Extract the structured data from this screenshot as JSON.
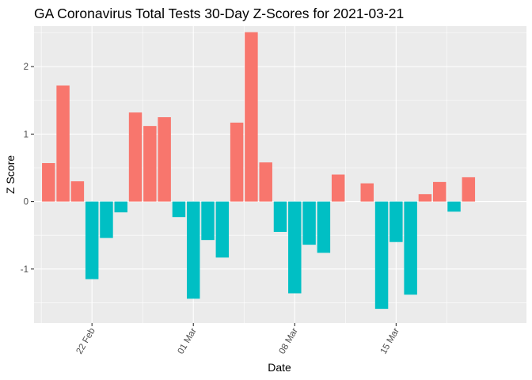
{
  "chart_data": {
    "type": "bar",
    "title": "GA Coronavirus Total Tests 30-Day Z-Scores for 2021-03-21",
    "xlabel": "Date",
    "ylabel": "Z Score",
    "ylim": [
      -1.8,
      2.6
    ],
    "yticks": [
      -1,
      0,
      1,
      2
    ],
    "xticks": [
      {
        "date": "2021-02-22",
        "label": "22 Feb"
      },
      {
        "date": "2021-03-01",
        "label": "01 Mar"
      },
      {
        "date": "2021-03-08",
        "label": "08 Mar"
      },
      {
        "date": "2021-03-15",
        "label": "15 Mar"
      }
    ],
    "xlim": [
      "2021-02-18",
      "2021-03-24"
    ],
    "grid": true,
    "legend": "none",
    "colors": {
      "positive": "#F8766D",
      "negative": "#00BFC4",
      "panel": "#EBEBEB",
      "grid": "#FFFFFF"
    },
    "dates": [
      "2021-02-19",
      "2021-02-20",
      "2021-02-21",
      "2021-02-22",
      "2021-02-23",
      "2021-02-24",
      "2021-02-25",
      "2021-02-26",
      "2021-02-27",
      "2021-02-28",
      "2021-03-01",
      "2021-03-02",
      "2021-03-03",
      "2021-03-04",
      "2021-03-05",
      "2021-03-06",
      "2021-03-07",
      "2021-03-08",
      "2021-03-09",
      "2021-03-10",
      "2021-03-11",
      "2021-03-12",
      "2021-03-13",
      "2021-03-14",
      "2021-03-15",
      "2021-03-16",
      "2021-03-17",
      "2021-03-18",
      "2021-03-19",
      "2021-03-20"
    ],
    "values": [
      0.57,
      1.72,
      0.3,
      -1.15,
      -0.54,
      -0.16,
      1.32,
      1.12,
      1.25,
      -0.23,
      -1.44,
      -0.57,
      -0.83,
      1.17,
      2.51,
      0.58,
      -0.45,
      -1.36,
      -0.64,
      -0.76,
      0.4,
      0.0,
      0.27,
      -1.59,
      -0.6,
      -1.38,
      0.11,
      0.29,
      -0.15,
      0.36
    ]
  }
}
